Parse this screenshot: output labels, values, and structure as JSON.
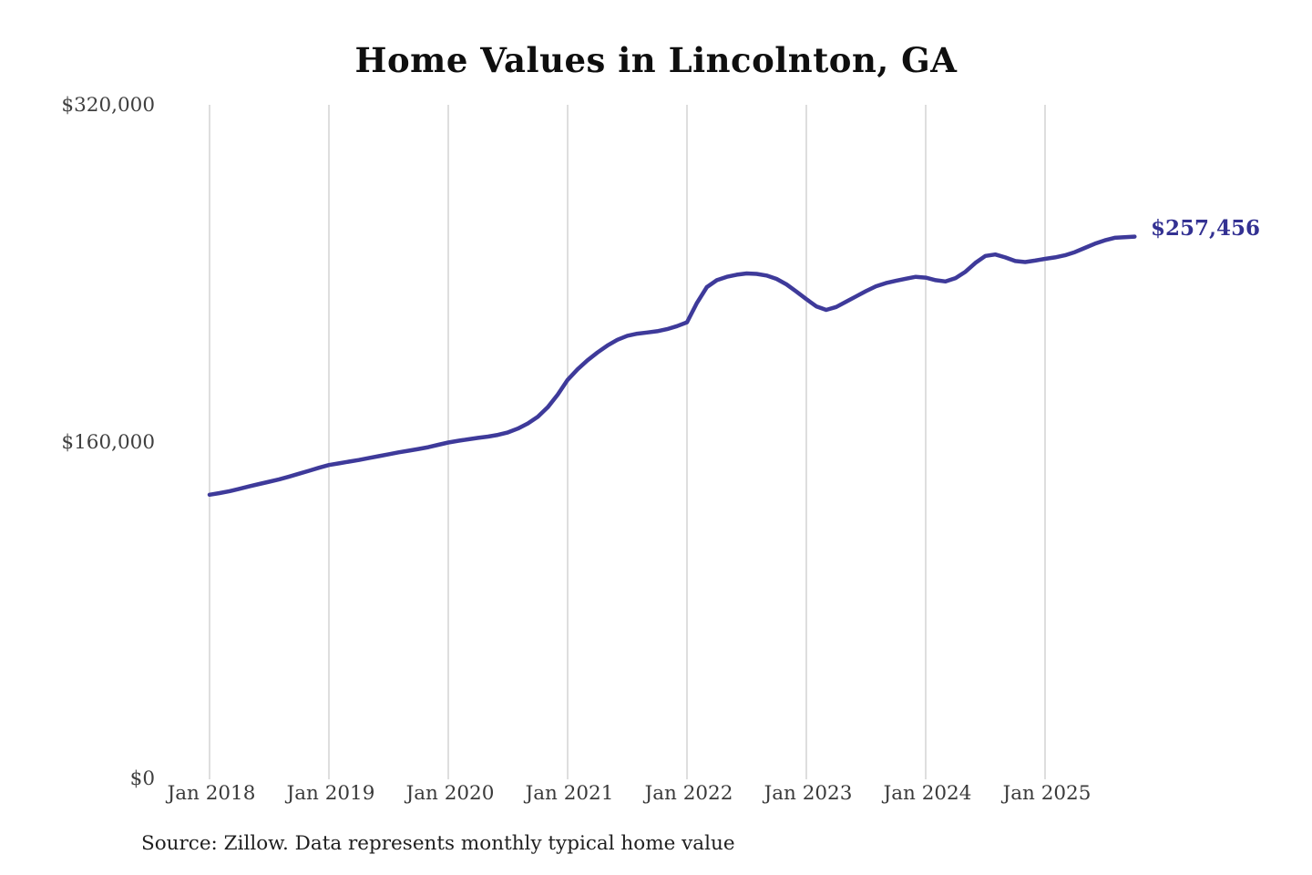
{
  "chart_data": {
    "type": "line",
    "title": "Home Values in Lincolnton, GA",
    "source_note": "Source: Zillow. Data represents monthly typical home value",
    "end_label": "$257,456",
    "end_value": 257456,
    "line_color": "#3e3a9a",
    "end_label_color": "#333192",
    "grid_color": "#cccccc",
    "grid": "vertical-yearly-only",
    "legend": "none",
    "x_tick_labels": [
      "Jan 2018",
      "Jan 2019",
      "Jan 2020",
      "Jan 2021",
      "Jan 2022",
      "Jan 2023",
      "Jan 2024",
      "Jan 2025"
    ],
    "y_axis": {
      "min": 0,
      "max": 320000,
      "ticks": [
        {
          "label": "$320,000",
          "value": 320000
        },
        {
          "label": "$160,000",
          "value": 160000
        },
        {
          "label": "$0",
          "value": 0
        }
      ]
    },
    "series": [
      {
        "name": "Monthly typical home value",
        "frequency": "monthly",
        "start": "Jan 2018",
        "end": "Oct 2025",
        "values": [
          135000,
          135800,
          136700,
          137800,
          139000,
          140100,
          141200,
          142300,
          143600,
          145000,
          146400,
          147800,
          149100,
          149900,
          150700,
          151500,
          152400,
          153300,
          154200,
          155100,
          155900,
          156700,
          157600,
          158700,
          159800,
          160600,
          161300,
          162000,
          162600,
          163400,
          164600,
          166400,
          168800,
          172000,
          176500,
          182500,
          189500,
          194500,
          198800,
          202500,
          205800,
          208500,
          210400,
          211400,
          212000,
          212600,
          213600,
          215000,
          216800,
          226000,
          233500,
          236800,
          238400,
          239400,
          240000,
          239800,
          239000,
          237400,
          234800,
          231400,
          227800,
          224400,
          222700,
          224100,
          226600,
          229100,
          231600,
          233900,
          235400,
          236500,
          237500,
          238400,
          238000,
          236800,
          236200,
          237800,
          240800,
          245000,
          248300,
          249000,
          247600,
          245900,
          245400,
          246100,
          246900,
          247600,
          248600,
          250100,
          252100,
          254100,
          255700,
          256900,
          257200,
          257456
        ]
      }
    ]
  }
}
